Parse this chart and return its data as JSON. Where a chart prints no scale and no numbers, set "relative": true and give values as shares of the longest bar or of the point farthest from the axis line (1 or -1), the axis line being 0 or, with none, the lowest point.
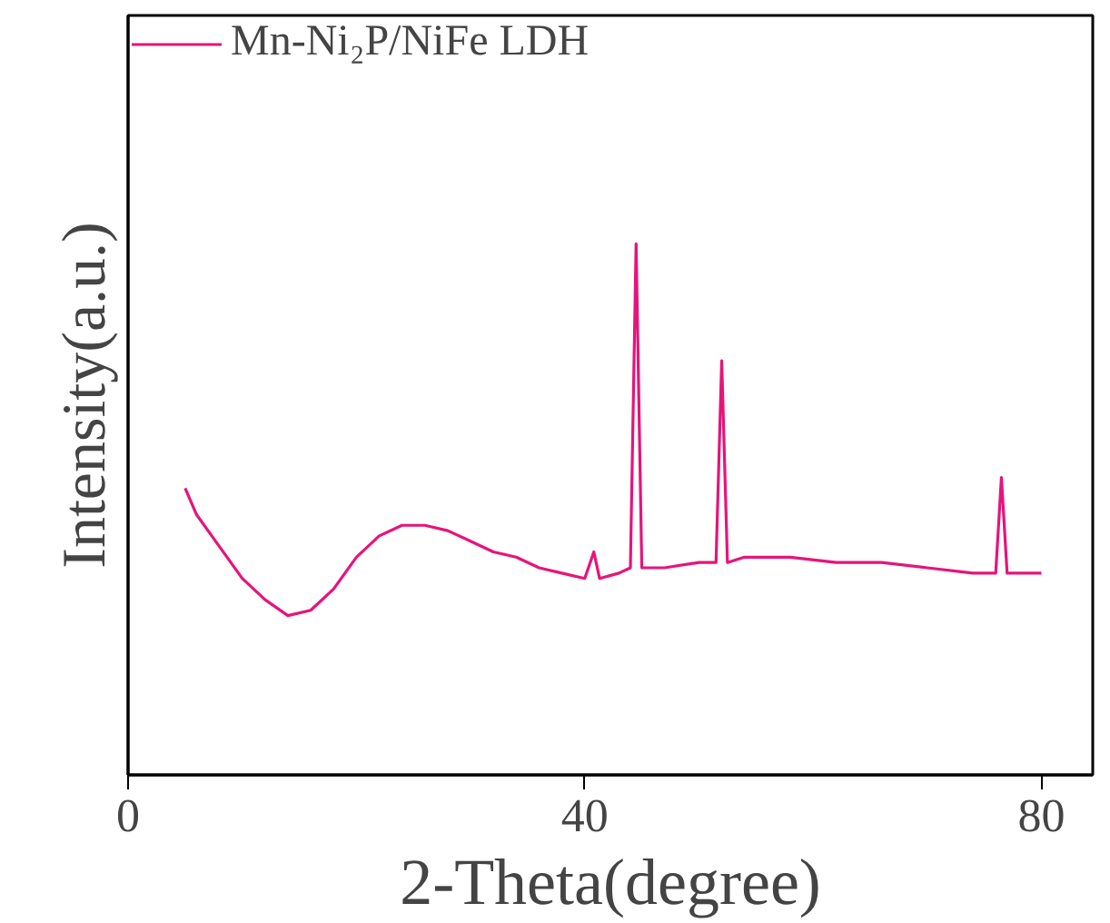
{
  "chart_data": {
    "type": "line",
    "xlabel": "2-Theta(degree)",
    "ylabel": "Intensity(a.u.)",
    "relative": true,
    "xlim": [
      0,
      84.5
    ],
    "xticks": [
      0,
      40,
      80
    ],
    "grid": false,
    "legend": "top left",
    "line_style": "solid",
    "marker": "none",
    "series": [
      {
        "name": "Mn-Ni₂P/NiFe LDH",
        "color": "#e6147a",
        "x": [
          5,
          6,
          8,
          10,
          12,
          14,
          16,
          18,
          20,
          22,
          24,
          26,
          28,
          30,
          32,
          34,
          36,
          38,
          40,
          40.8,
          41.3,
          43,
          44,
          44.5,
          45,
          47,
          50,
          51.5,
          52,
          52.5,
          54,
          58,
          62,
          66,
          70,
          74,
          76,
          76.5,
          77,
          80
        ],
        "values": [
          0.54,
          0.49,
          0.43,
          0.37,
          0.33,
          0.3,
          0.31,
          0.35,
          0.41,
          0.45,
          0.47,
          0.47,
          0.46,
          0.44,
          0.42,
          0.41,
          0.39,
          0.38,
          0.37,
          0.42,
          0.37,
          0.38,
          0.39,
          1.0,
          0.39,
          0.39,
          0.4,
          0.4,
          0.78,
          0.4,
          0.41,
          0.41,
          0.4,
          0.4,
          0.39,
          0.38,
          0.38,
          0.56,
          0.38,
          0.38
        ]
      }
    ]
  }
}
